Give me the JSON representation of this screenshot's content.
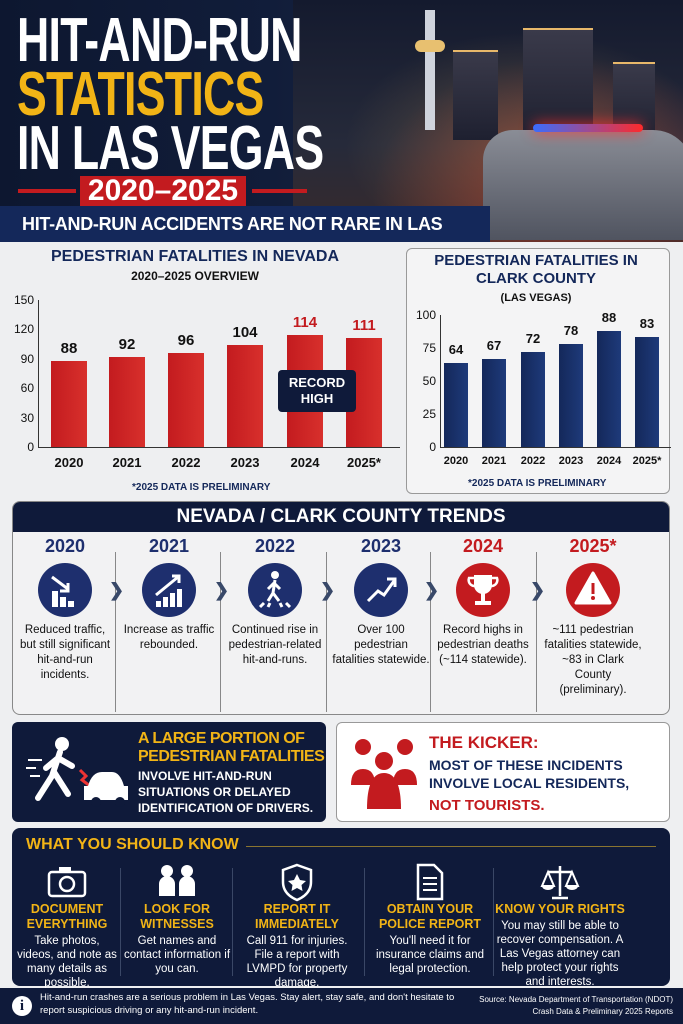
{
  "header": {
    "title_line1": "HIT-AND-RUN",
    "title_line2": "STATISTICS",
    "title_line3": "IN LAS VEGAS",
    "years": "2020–2025",
    "tagline": "HIT-AND-RUN ACCIDENTS ARE NOT RARE IN LAS VEGAS."
  },
  "colors": {
    "navy": "#14285a",
    "red": "#c31b1f",
    "gold": "#f2b416",
    "dark": "#0f1a3a"
  },
  "chart_data": [
    {
      "type": "bar",
      "title": "PEDESTRIAN FATALITIES IN NEVADA",
      "subtitle": "2020–2025 OVERVIEW",
      "categories": [
        "2020",
        "2021",
        "2022",
        "2023",
        "2024",
        "2025*"
      ],
      "values": [
        88,
        92,
        96,
        104,
        114,
        111
      ],
      "ylim": [
        0,
        150
      ],
      "yticks": [
        "0",
        "30",
        "60",
        "90",
        "120",
        "150"
      ],
      "color": "#c31b1f",
      "annotation": "RECORD HIGH",
      "note": "*2025 DATA IS PRELIMINARY",
      "grid": false
    },
    {
      "type": "bar",
      "title": "PEDESTRIAN FATALITIES IN CLARK COUNTY",
      "subtitle": "(LAS VEGAS)",
      "categories": [
        "2020",
        "2021",
        "2022",
        "2023",
        "2024",
        "2025*"
      ],
      "values": [
        64,
        67,
        72,
        78,
        88,
        83
      ],
      "ylim": [
        0,
        100
      ],
      "yticks": [
        "0",
        "25",
        "50",
        "75",
        "100"
      ],
      "color": "#14285a",
      "note": "*2025 DATA IS PRELIMINARY",
      "grid": false
    }
  ],
  "trends": {
    "title": "NEVADA / CLARK COUNTY TRENDS",
    "items": [
      {
        "year": "2020",
        "icon": "chart-down-icon",
        "text": "Reduced traffic, but still significant hit-and-run incidents."
      },
      {
        "year": "2021",
        "icon": "chart-up-icon",
        "text": "Increase as traffic rebounded."
      },
      {
        "year": "2022",
        "icon": "pedestrian-crosswalk-icon",
        "text": "Continued rise in pedestrian-related hit-and-runs."
      },
      {
        "year": "2023",
        "icon": "trend-up-icon",
        "text": "Over 100 pedestrian fatalities statewide."
      },
      {
        "year": "2024",
        "icon": "trophy-icon",
        "text": "Record highs in pedestrian deaths (~114 statewide)."
      },
      {
        "year": "2025*",
        "icon": "warning-icon",
        "text": "~111 pedestrian fatalities statewide, ~83 in Clark County (preliminary)."
      }
    ]
  },
  "portion": {
    "heading1": "A LARGE PORTION OF",
    "heading2": "PEDESTRIAN FATALITIES",
    "body": "INVOLVE HIT-AND-RUN SITUATIONS OR DELAYED IDENTIFICATION OF DRIVERS."
  },
  "kicker": {
    "heading": "THE KICKER:",
    "body": "MOST OF THESE INCIDENTS INVOLVE LOCAL RESIDENTS,",
    "highlight": "NOT TOURISTS."
  },
  "know": {
    "title": "WHAT YOU SHOULD KNOW",
    "items": [
      {
        "icon": "camera-icon",
        "heading": "DOCUMENT EVERYTHING",
        "text": "Take photos, videos, and note as many details as possible."
      },
      {
        "icon": "people-icon",
        "heading": "LOOK FOR WITNESSES",
        "text": "Get names and contact information if you can."
      },
      {
        "icon": "police-badge-icon",
        "heading": "REPORT IT IMMEDIATELY",
        "text": "Call 911 for injuries. File a report with LVMPD for property damage."
      },
      {
        "icon": "document-icon",
        "heading": "OBTAIN YOUR POLICE REPORT",
        "text": "You'll need it for insurance claims and legal protection."
      },
      {
        "icon": "scales-icon",
        "heading": "KNOW YOUR RIGHTS",
        "text": "You may still be able to recover compensation. A Las Vegas attorney can help protect your rights and interests."
      }
    ]
  },
  "footer": {
    "message": "Hit-and-run crashes are a serious problem in Las Vegas. Stay alert, stay safe, and don't hesitate to report suspicious driving or any hit-and-run incident.",
    "source_line1": "Source: Nevada Department of Transportation (NDOT)",
    "source_line2": "Crash Data & Preliminary 2025 Reports"
  }
}
